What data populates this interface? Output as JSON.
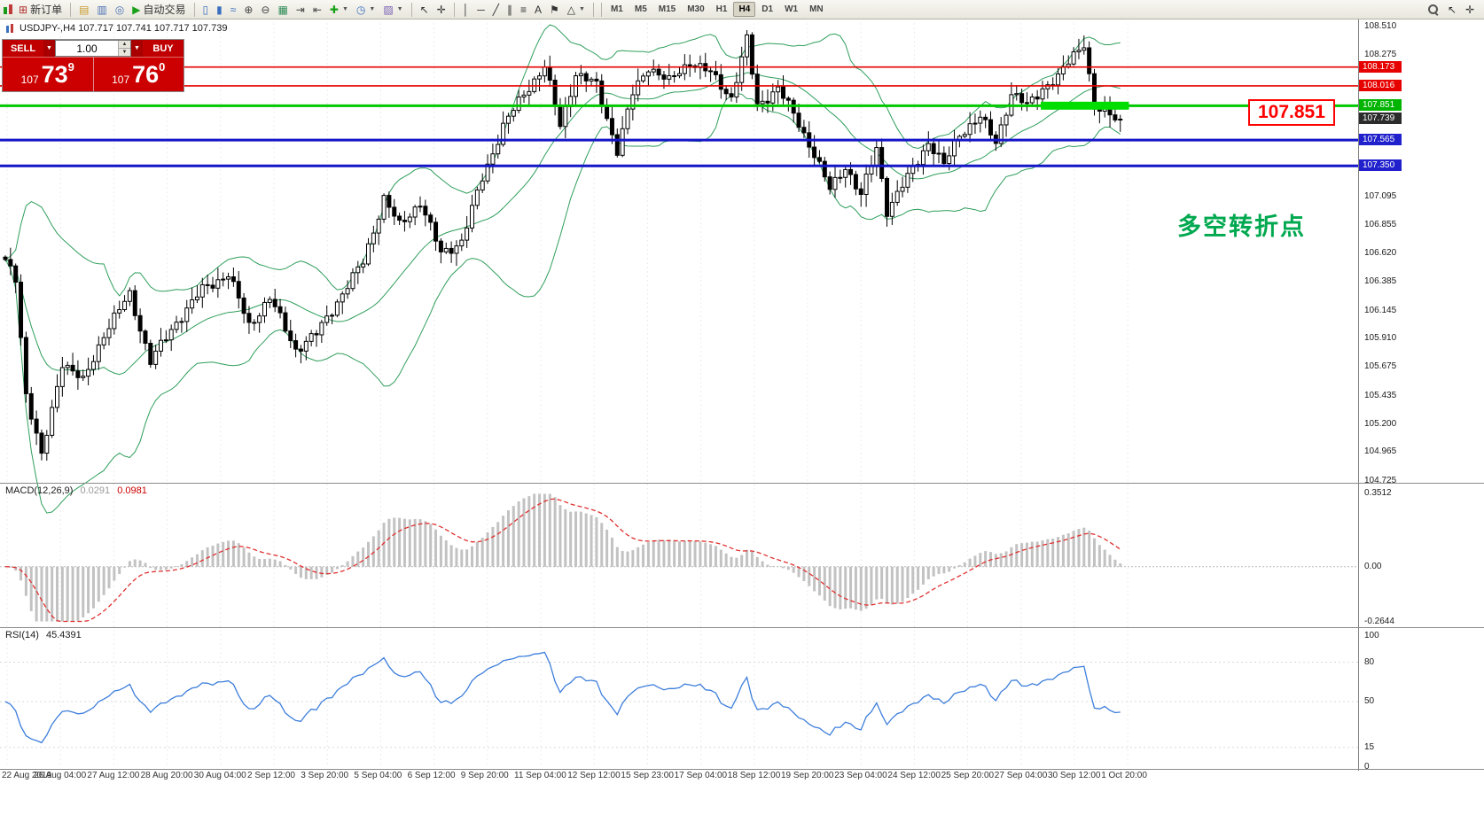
{
  "toolbar": {
    "buttons": [
      {
        "name": "new-order-button",
        "icon": "⊞",
        "icon_color": "#b03030",
        "label": "新订单"
      },
      {
        "sep": true
      },
      {
        "name": "market-watch-button",
        "icon": "▤",
        "icon_color": "#c89b2a"
      },
      {
        "name": "data-window-button",
        "icon": "▥",
        "icon_color": "#4a6fb5"
      },
      {
        "name": "navigator-button",
        "icon": "◎",
        "icon_color": "#4a6fb5"
      },
      {
        "name": "autotrade-button",
        "icon": "▶",
        "icon_color": "#18a018",
        "label": "自动交易"
      },
      {
        "sep": true
      },
      {
        "name": "bar-chart-button",
        "icon": "▯",
        "icon_color": "#3a6fc0"
      },
      {
        "name": "candlestick-chart-button",
        "icon": "▮",
        "icon_color": "#3a6fc0"
      },
      {
        "name": "line-chart-button",
        "icon": "≈",
        "icon_color": "#3a6fc0"
      },
      {
        "name": "zoom-in-button",
        "icon": "⊕",
        "icon_color": "#444444"
      },
      {
        "name": "zoom-out-button",
        "icon": "⊖",
        "icon_color": "#444444"
      },
      {
        "name": "tile-windows-button",
        "icon": "▦",
        "icon_color": "#2e8b57"
      },
      {
        "name": "auto-scroll-button",
        "icon": "⇥",
        "icon_color": "#444444"
      },
      {
        "name": "chart-shift-button",
        "icon": "⇤",
        "icon_color": "#444444"
      },
      {
        "name": "indicators-button",
        "icon": "✚",
        "icon_color": "#18a018",
        "caret": true
      },
      {
        "name": "periods-button",
        "icon": "◷",
        "icon_color": "#3a6fc0",
        "caret": true
      },
      {
        "name": "templates-button",
        "icon": "▨",
        "icon_color": "#7a5fb5",
        "caret": true
      },
      {
        "sep": true
      },
      {
        "name": "cursor-button",
        "icon": "↖",
        "icon_color": "#333333"
      },
      {
        "name": "crosshair-button",
        "icon": "✛",
        "icon_color": "#333333"
      },
      {
        "sep": true
      },
      {
        "name": "vertical-line-button",
        "icon": "│",
        "icon_color": "#333333"
      },
      {
        "name": "horizontal-line-button",
        "icon": "─",
        "icon_color": "#333333"
      },
      {
        "name": "trendline-button",
        "icon": "╱",
        "icon_color": "#333333"
      },
      {
        "name": "channel-button",
        "icon": "∥",
        "icon_color": "#333333"
      },
      {
        "name": "fibonacci-button",
        "icon": "≡",
        "icon_color": "#333333"
      },
      {
        "name": "text-button",
        "icon": "A",
        "icon_color": "#333333"
      },
      {
        "name": "label-button",
        "icon": "⚑",
        "icon_color": "#333333"
      },
      {
        "name": "shapes-button",
        "icon": "△",
        "icon_color": "#333333",
        "caret": true
      },
      {
        "sep": true
      }
    ],
    "timeframes": {
      "items": [
        "M1",
        "M5",
        "M15",
        "M30",
        "H1",
        "H4",
        "D1",
        "W1",
        "MN"
      ],
      "active": "H4"
    }
  },
  "chart": {
    "symbol_title": "USDJPY-,H4 107.717 107.741 107.717 107.739",
    "trade_panel": {
      "sell_label": "SELL",
      "buy_label": "BUY",
      "volume": "1.00",
      "bid_prefix": "107",
      "bid_big": "73",
      "bid_sup": "9",
      "ask_prefix": "107",
      "ask_big": "76",
      "ask_sup": "0"
    },
    "annotation_text": "多空转折点",
    "callout_text": "107.851",
    "price_ticks": [
      {
        "label": "108.510",
        "value": 108.51
      },
      {
        "label": "108.275",
        "value": 108.275
      },
      {
        "label": "107.095",
        "value": 107.095
      },
      {
        "label": "106.855",
        "value": 106.855
      },
      {
        "label": "106.620",
        "value": 106.62
      },
      {
        "label": "106.385",
        "value": 106.385
      },
      {
        "label": "106.145",
        "value": 106.145
      },
      {
        "label": "105.910",
        "value": 105.91
      },
      {
        "label": "105.675",
        "value": 105.675
      },
      {
        "label": "105.435",
        "value": 105.435
      },
      {
        "label": "105.200",
        "value": 105.2
      },
      {
        "label": "104.965",
        "value": 104.965
      },
      {
        "label": "104.725",
        "value": 104.725
      }
    ],
    "price_tags": [
      {
        "label": "108.173",
        "value": 108.173,
        "color": "#e60000"
      },
      {
        "label": "108.016",
        "value": 108.016,
        "color": "#e60000"
      },
      {
        "label": "107.851",
        "value": 107.851,
        "color": "#00b400"
      },
      {
        "label": "107.739",
        "value": 107.739,
        "color": "#2b2b2b"
      },
      {
        "label": "107.565",
        "value": 107.565,
        "color": "#2020cc"
      },
      {
        "label": "107.350",
        "value": 107.35,
        "color": "#2020cc"
      }
    ],
    "hlines": [
      {
        "value": 108.173,
        "color": "#e60000",
        "width": 1.6
      },
      {
        "value": 108.016,
        "color": "#e60000",
        "width": 1.6
      },
      {
        "value": 107.851,
        "color": "#00c800",
        "width": 3
      },
      {
        "value": 107.565,
        "color": "#1414c8",
        "width": 3
      },
      {
        "value": 107.35,
        "color": "#1414c8",
        "width": 3
      }
    ],
    "highlight": {
      "price": 107.851,
      "from_candle": 200,
      "to_candle": 217,
      "color": "#00dd00",
      "thickness": 9
    }
  },
  "macd_panel": {
    "name": "MACD(12,26,9)",
    "value_main": "0.0291",
    "value_signal": "0.0981",
    "ticks": [
      {
        "label": "0.3512",
        "value": 0.3512
      },
      {
        "label": "0.00",
        "value": 0
      },
      {
        "label": "-0.2644",
        "value": -0.2644
      }
    ],
    "range": [
      -0.2644,
      0.3512
    ]
  },
  "rsi_panel": {
    "name": "RSI(14)",
    "value": "45.4391",
    "ticks": [
      {
        "label": "100",
        "value": 100
      },
      {
        "label": "80",
        "value": 80
      },
      {
        "label": "50",
        "value": 50
      },
      {
        "label": "15",
        "value": 15
      },
      {
        "label": "0",
        "value": 0
      }
    ],
    "levels": [
      80,
      50,
      15
    ]
  },
  "dates": [
    "22 Aug 2019",
    "26 Aug 04:00",
    "27 Aug 12:00",
    "28 Aug 20:00",
    "30 Aug 04:00",
    "2 Sep 12:00",
    "3 Sep 20:00",
    "5 Sep 04:00",
    "6 Sep 12:00",
    "9 Sep 20:00",
    "11 Sep 04:00",
    "12 Sep 12:00",
    "15 Sep 23:00",
    "17 Sep 04:00",
    "18 Sep 12:00",
    "19 Sep 20:00",
    "23 Sep 04:00",
    "24 Sep 12:00",
    "25 Sep 20:00",
    "27 Sep 04:00",
    "30 Sep 12:00",
    "1 Oct 20:00"
  ],
  "chart_data": {
    "type": "candlestick",
    "symbol": "USDJPY",
    "timeframe": "H4",
    "title": "USDJPY-,H4",
    "ohlc_current": {
      "open": 107.717,
      "high": 107.741,
      "low": 107.717,
      "close": 107.739
    },
    "bid": "107.739",
    "ask": "107.760",
    "y_axis": {
      "min": 104.725,
      "max": 108.51
    },
    "candle_count": 216,
    "price_anchors": [
      [
        0,
        106.55
      ],
      [
        2,
        106.42
      ],
      [
        4,
        105.45
      ],
      [
        7,
        104.92
      ],
      [
        11,
        105.72
      ],
      [
        15,
        105.55
      ],
      [
        19,
        105.95
      ],
      [
        24,
        106.28
      ],
      [
        28,
        105.72
      ],
      [
        33,
        106.05
      ],
      [
        38,
        106.32
      ],
      [
        43,
        106.45
      ],
      [
        47,
        106.02
      ],
      [
        51,
        106.25
      ],
      [
        56,
        105.82
      ],
      [
        60,
        105.95
      ],
      [
        64,
        106.22
      ],
      [
        69,
        106.55
      ],
      [
        73,
        107.08
      ],
      [
        76,
        106.85
      ],
      [
        80,
        107.05
      ],
      [
        84,
        106.62
      ],
      [
        88,
        106.72
      ],
      [
        92,
        107.25
      ],
      [
        96,
        107.68
      ],
      [
        100,
        107.95
      ],
      [
        104,
        108.18
      ],
      [
        107,
        107.68
      ],
      [
        110,
        108.12
      ],
      [
        114,
        108.02
      ],
      [
        118,
        107.48
      ],
      [
        121,
        107.95
      ],
      [
        124,
        108.18
      ],
      [
        128,
        108.05
      ],
      [
        132,
        108.22
      ],
      [
        136,
        108.12
      ],
      [
        140,
        107.92
      ],
      [
        143,
        108.4
      ],
      [
        145,
        107.85
      ],
      [
        149,
        108.0
      ],
      [
        153,
        107.7
      ],
      [
        156,
        107.45
      ],
      [
        159,
        107.15
      ],
      [
        162,
        107.35
      ],
      [
        165,
        107.1
      ],
      [
        168,
        107.5
      ],
      [
        170,
        106.98
      ],
      [
        174,
        107.25
      ],
      [
        178,
        107.55
      ],
      [
        181,
        107.35
      ],
      [
        184,
        107.62
      ],
      [
        188,
        107.75
      ],
      [
        191,
        107.55
      ],
      [
        194,
        107.95
      ],
      [
        197,
        107.85
      ],
      [
        200,
        108.0
      ],
      [
        203,
        108.08
      ],
      [
        206,
        108.28
      ],
      [
        208,
        108.38
      ],
      [
        210,
        107.82
      ],
      [
        213,
        107.78
      ],
      [
        215,
        107.74
      ]
    ],
    "indicators": {
      "bollinger": {
        "period": 20,
        "deviation": 2,
        "color": "#2e9e5b"
      },
      "macd": {
        "fast": 12,
        "slow": 26,
        "signal": 9,
        "histogram_color": "#c2c2c2",
        "signal_color": "#e03030"
      },
      "rsi": {
        "period": 14,
        "color": "#3d7edb"
      }
    },
    "levels": [
      108.173,
      108.016,
      107.851,
      107.565,
      107.35
    ]
  }
}
